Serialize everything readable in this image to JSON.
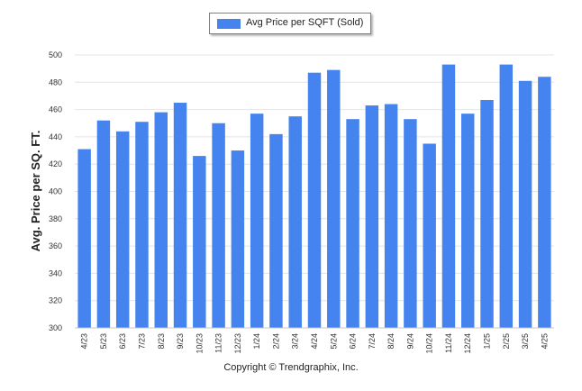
{
  "chart_data": {
    "type": "bar",
    "categories": [
      "4/23",
      "5/23",
      "6/23",
      "7/23",
      "8/23",
      "9/23",
      "10/23",
      "11/23",
      "12/23",
      "1/24",
      "2/24",
      "3/24",
      "4/24",
      "5/24",
      "6/24",
      "7/24",
      "8/24",
      "9/24",
      "10/24",
      "11/24",
      "12/24",
      "1/25",
      "2/25",
      "3/25",
      "4/25"
    ],
    "series": [
      {
        "name": "Avg Price per SQFT (Sold)",
        "color": "#4584ee",
        "values": [
          431,
          452,
          444,
          451,
          458,
          465,
          426,
          450,
          430,
          457,
          442,
          455,
          487,
          489,
          453,
          463,
          464,
          453,
          435,
          493,
          457,
          467,
          493,
          481,
          484
        ]
      }
    ],
    "ylabel": "Avg. Price per SQ. FT.",
    "xlabel": "",
    "title": "",
    "ylim": [
      300,
      500
    ],
    "yticks": [
      300,
      320,
      340,
      360,
      380,
      400,
      420,
      440,
      460,
      480,
      500
    ],
    "grid": true,
    "legend_position": "top-center"
  },
  "footer": {
    "credit": "Copyright © Trendgraphix, Inc."
  }
}
